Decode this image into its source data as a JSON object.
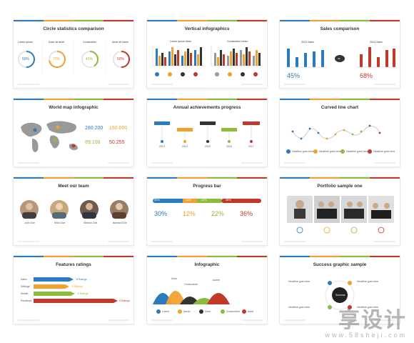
{
  "colors": {
    "blue": "#2b7bbf",
    "orange": "#f2a12e",
    "green": "#8dbb3b",
    "dark": "#333333",
    "red": "#c0392b",
    "gray": "#999999"
  },
  "slides": {
    "s1": {
      "title": "Circle statistics comparison",
      "headers": [
        "Lorem ipsum",
        "Dolor sit amet",
        "Consectetur",
        "Amet sit lorem"
      ],
      "values": [
        "50%",
        "72%",
        "41%",
        "50%"
      ]
    },
    "s2": {
      "title": "Vertical infographics",
      "left_label": "Lorem ipsum dolor",
      "right_label": "Consectetur lorem"
    },
    "s3": {
      "title": "Sales comparison",
      "left_year": "2013 Sales",
      "right_year": "2014 Sales",
      "vs": "vs",
      "left_pct": "45%",
      "right_pct": "68%"
    },
    "s4": {
      "title": "World map infographic",
      "stats": [
        "280.200",
        "150.000",
        "89.100",
        "50.255"
      ]
    },
    "s5": {
      "title": "Annual achievements progress",
      "years": [
        "2013",
        "2014",
        "2015",
        "2016",
        "2017"
      ]
    },
    "s6": {
      "title": "Curved line chart",
      "legend": [
        "Headline goes here",
        "Headline goes here",
        "Headline goes here",
        "Headline goes here"
      ]
    },
    "s7": {
      "title": "Meet our team",
      "names": [
        "John Doe",
        "Erika Doe",
        "Stefano Doe",
        "Barbara Doe"
      ]
    },
    "s8": {
      "title": "Progress bar",
      "bar_labels": [
        "30%",
        "12%",
        "22%",
        "36%"
      ],
      "values": [
        "30%",
        "12%",
        "22%",
        "36%"
      ]
    },
    "s9": {
      "title": "Portfolio sample one"
    },
    "s10": {
      "title": "Features ratings",
      "rows": [
        "Sales",
        "Settings",
        "Mobile",
        "Feedback"
      ],
      "ratings": [
        "8 Ratings",
        "6 Ratings",
        "8 Ratings",
        "8 Ratings"
      ]
    },
    "s11": {
      "title": "Infographic",
      "peaks": [
        "Dolor",
        "Consectetur",
        "Autrim"
      ],
      "legend": [
        "Lorem",
        "Ipsum",
        "Dolor",
        "Consectetur",
        "Amet"
      ]
    },
    "s12": {
      "title": "Success graphic sample",
      "center": "Success",
      "items": [
        "Headline goes here",
        "Headline goes here",
        "Headline goes here",
        "Headline goes here"
      ]
    }
  },
  "watermark": {
    "cn": "享设计",
    "url": "www.58sheji.com"
  }
}
